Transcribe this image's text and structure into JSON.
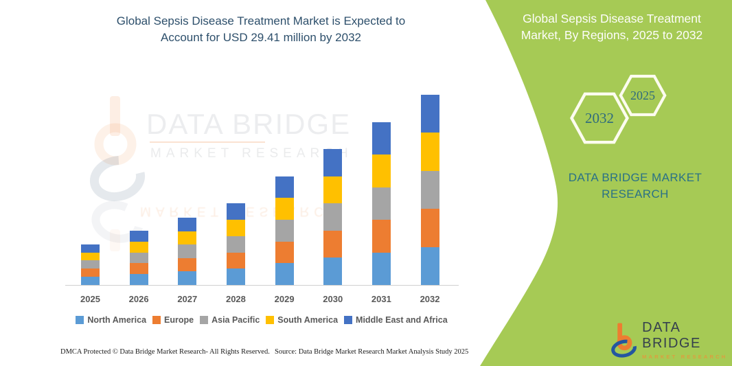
{
  "footer": {
    "left": "DMCA Protected © Data Bridge Market Research- All Rights Reserved.",
    "right": "Source: Data Bridge Market Research Market Analysis Study 2025"
  },
  "watermark": {
    "line1": "DATA BRIDGE",
    "line2": "MARKET RESEARCH",
    "reflection": "MARKET RESEARCH"
  },
  "chart_data": {
    "type": "bar",
    "stacked": true,
    "title": "Global Sepsis Disease Treatment Market is Expected to Account for USD 29.41 million by 2032",
    "unit": "USD million",
    "categories": [
      "2025",
      "2026",
      "2027",
      "2028",
      "2029",
      "2030",
      "2031",
      "2032"
    ],
    "series": [
      {
        "name": "North America",
        "color": "#5B9BD5",
        "values": [
          1.26,
          1.68,
          2.08,
          2.52,
          3.36,
          4.2,
          5.04,
          5.88
        ]
      },
      {
        "name": "Europe",
        "color": "#ED7D31",
        "values": [
          1.26,
          1.68,
          2.08,
          2.52,
          3.36,
          4.2,
          5.04,
          5.88
        ]
      },
      {
        "name": "Asia Pacific",
        "color": "#A5A5A5",
        "values": [
          1.26,
          1.68,
          2.08,
          2.52,
          3.36,
          4.2,
          5.04,
          5.88
        ]
      },
      {
        "name": "South America",
        "color": "#FFC000",
        "values": [
          1.26,
          1.68,
          2.08,
          2.52,
          3.36,
          4.2,
          5.04,
          5.88
        ]
      },
      {
        "name": "Middle East and Africa",
        "color": "#4472C4",
        "values": [
          1.26,
          1.68,
          2.08,
          2.52,
          3.36,
          4.2,
          5.04,
          5.89
        ]
      }
    ],
    "totals": [
      6.3,
      8.4,
      10.4,
      12.6,
      16.8,
      21.0,
      25.2,
      29.41
    ],
    "ylim": [
      0,
      30
    ],
    "grid": false,
    "y_axis_visible": false,
    "legend_position": "bottom"
  },
  "panel": {
    "bg_color": "#a6ca55",
    "title": "Global Sepsis Disease Treatment Market, By Regions, 2025 to 2032",
    "hexagons": [
      {
        "label": "2032"
      },
      {
        "label": "2025"
      }
    ],
    "brand_text": "DATA BRIDGE MARKET RESEARCH",
    "logo": {
      "line1": "DATA BRIDGE",
      "line2": "MARKET RESEARCH"
    }
  }
}
